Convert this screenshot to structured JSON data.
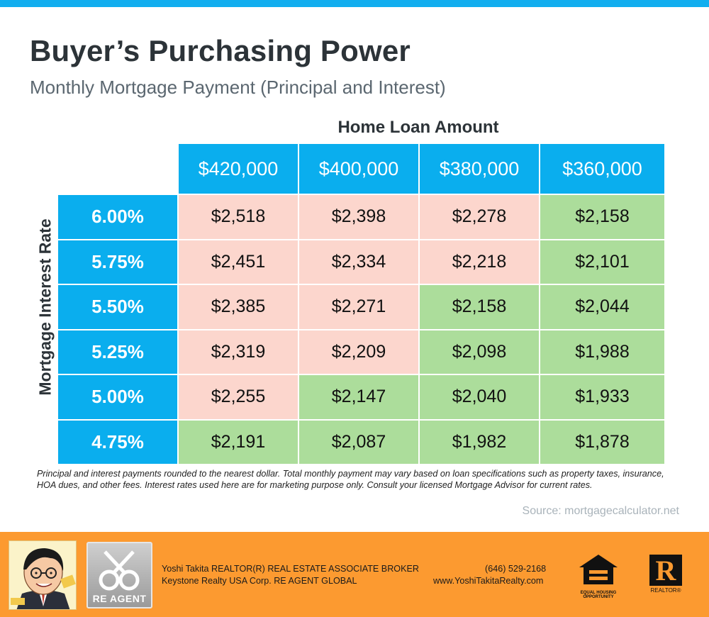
{
  "title": "Buyer’s Purchasing Power",
  "subtitle": "Monthly Mortgage Payment (Principal and Interest)",
  "column_axis_label": "Home Loan Amount",
  "row_axis_label": "Mortgage Interest Rate",
  "colors": {
    "header_blue": "#0aaeee",
    "above_budget_pink": "#fcd6cd",
    "within_budget_green": "#acdd9b",
    "footer_orange": "#fc9a30"
  },
  "loan_amounts": [
    "$420,000",
    "$400,000",
    "$380,000",
    "$360,000"
  ],
  "rows": [
    {
      "rate": "6.00%",
      "payments": [
        "$2,518",
        "$2,398",
        "$2,278",
        "$2,158"
      ],
      "shade": [
        "high",
        "high",
        "high",
        "low"
      ]
    },
    {
      "rate": "5.75%",
      "payments": [
        "$2,451",
        "$2,334",
        "$2,218",
        "$2,101"
      ],
      "shade": [
        "high",
        "high",
        "high",
        "low"
      ]
    },
    {
      "rate": "5.50%",
      "payments": [
        "$2,385",
        "$2,271",
        "$2,158",
        "$2,044"
      ],
      "shade": [
        "high",
        "high",
        "low",
        "low"
      ]
    },
    {
      "rate": "5.25%",
      "payments": [
        "$2,319",
        "$2,209",
        "$2,098",
        "$1,988"
      ],
      "shade": [
        "high",
        "high",
        "low",
        "low"
      ]
    },
    {
      "rate": "5.00%",
      "payments": [
        "$2,255",
        "$2,147",
        "$2,040",
        "$1,933"
      ],
      "shade": [
        "high",
        "low",
        "low",
        "low"
      ]
    },
    {
      "rate": "4.75%",
      "payments": [
        "$2,191",
        "$2,087",
        "$1,982",
        "$1,878"
      ],
      "shade": [
        "low",
        "low",
        "low",
        "low"
      ]
    }
  ],
  "disclaimer": "Principal and interest payments rounded to the nearest dollar. Total monthly payment may vary based on loan specifications such as property taxes, insurance, HOA dues, and other fees. Interest rates used here are for marketing purpose only. Consult your licensed Mortgage Advisor for current rates.",
  "source": "Source: mortgagecalculator.net",
  "footer": {
    "agent_name": "Yoshi Takita REALTOR(R) REAL ESTATE ASSOCIATE BROKER",
    "brokerage": "Keystone Realty USA Corp.  RE AGENT GLOBAL",
    "phone": "(646) 529-2168",
    "website": "www.YoshiTakitaRealty.com",
    "reagent_logo_text": "RE AGENT",
    "equal_housing_text": "EQUAL HOUSING OPPORTUNITY",
    "realtor_logo_letter": "R",
    "realtor_logo_text": "REALTOR®",
    "icons": [
      "portrait-caricature",
      "re-agent-keys-logo",
      "equal-housing-icon",
      "realtor-logo-icon"
    ]
  }
}
